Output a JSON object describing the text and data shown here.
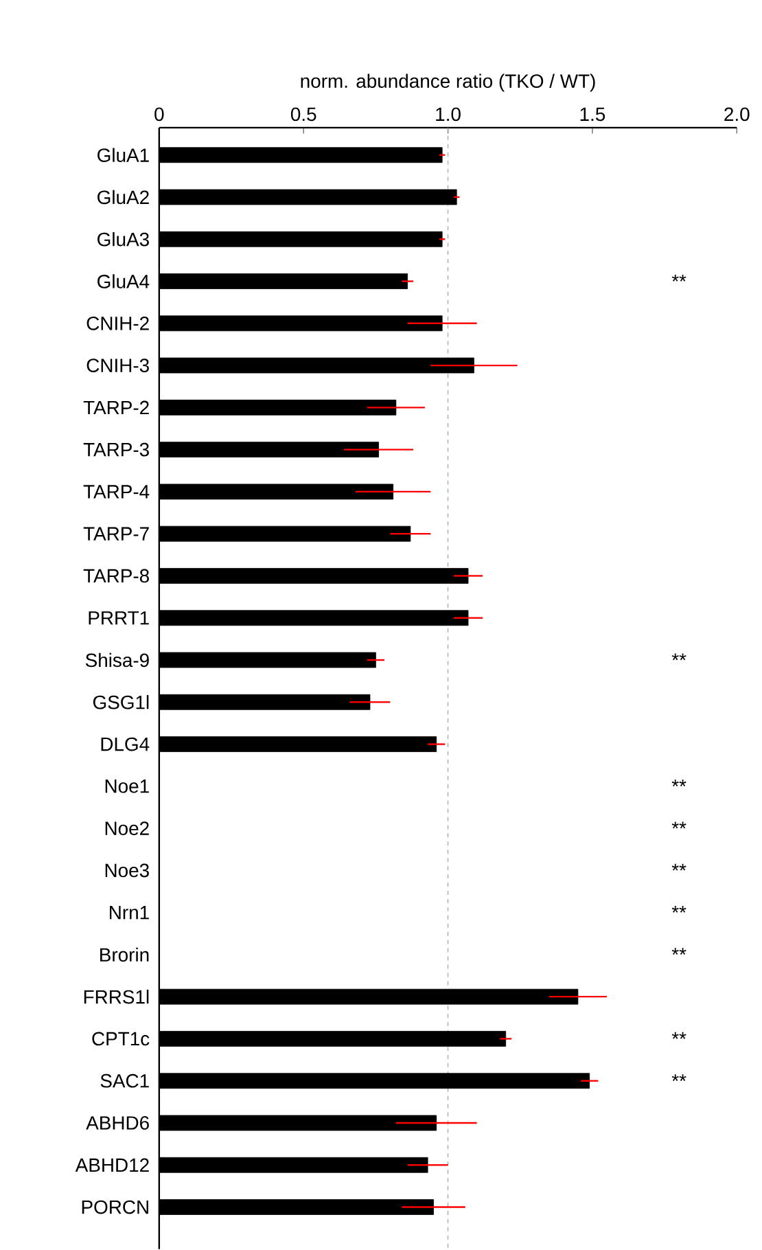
{
  "chart_data": {
    "type": "bar",
    "orientation": "horizontal",
    "xlabel": "norm. abundance ratio (TKO / WT)",
    "categories": [
      "GluA1",
      "GluA2",
      "GluA3",
      "GluA4",
      "CNIH-2",
      "CNIH-3",
      "TARP-2",
      "TARP-3",
      "TARP-4",
      "TARP-7",
      "TARP-8",
      "PRRT1",
      "Shisa-9",
      "GSG1l",
      "DLG4",
      "Noe1",
      "Noe2",
      "Noe3",
      "Nrn1",
      "Brorin",
      "FRRS1l",
      "CPT1c",
      "SAC1",
      "ABHD6",
      "ABHD12",
      "PORCN"
    ],
    "values": [
      0.98,
      1.03,
      0.98,
      0.86,
      0.98,
      1.09,
      0.82,
      0.76,
      0.81,
      0.87,
      1.07,
      1.07,
      0.75,
      0.73,
      0.96,
      null,
      null,
      null,
      null,
      null,
      1.45,
      1.2,
      1.49,
      0.96,
      0.93,
      0.95
    ],
    "errors": [
      0.01,
      0.01,
      0.01,
      0.02,
      0.12,
      0.15,
      0.1,
      0.12,
      0.13,
      0.07,
      0.05,
      0.05,
      0.03,
      0.07,
      0.03,
      null,
      null,
      null,
      null,
      null,
      0.1,
      0.02,
      0.03,
      0.14,
      0.07,
      0.11
    ],
    "color": "#000000",
    "value_labels": [
      null,
      null,
      null,
      "**",
      null,
      null,
      null,
      null,
      null,
      null,
      null,
      null,
      "**",
      null,
      null,
      "**",
      "**",
      "**",
      "**",
      "**",
      null,
      "**",
      "**",
      null,
      null,
      null
    ],
    "xlim": [
      0,
      2.0
    ],
    "xticks": [
      0,
      {
        "value": 0.5,
        "label": "0.5"
      },
      {
        "value": 1,
        "label": "1.0"
      },
      {
        "value": 1.5,
        "label": "1.5"
      },
      {
        "value": 2,
        "label": "2.0"
      }
    ],
    "ref_lines": [
      {
        "axis": "x",
        "value": 1,
        "color": "#999999",
        "line_style": "dashed"
      }
    ],
    "grid": false
  }
}
